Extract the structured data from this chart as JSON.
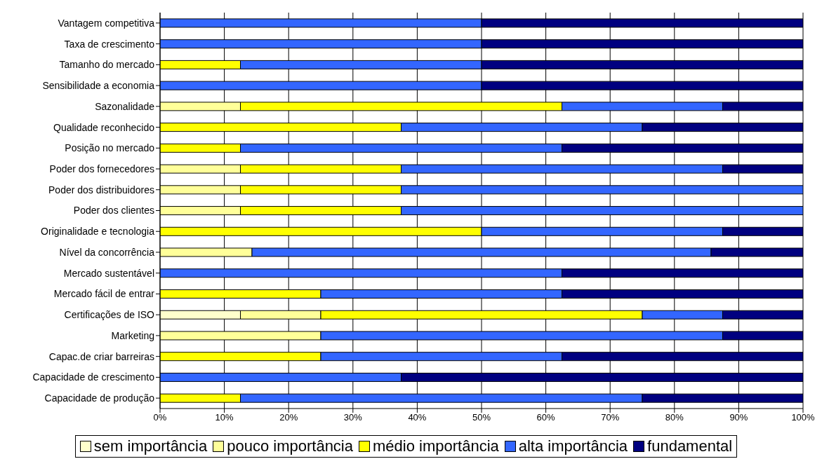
{
  "chart_data": {
    "type": "bar",
    "orientation": "horizontal",
    "stacked": true,
    "categories": [
      "Vantagem competitiva",
      "Taxa de crescimento",
      "Tamanho do mercado",
      "Sensibilidade a economia",
      "Sazonalidade",
      "Qualidade reconhecido",
      "Posição no mercado",
      "Poder dos fornecedores",
      "Poder dos distribuidores",
      "Poder dos clientes",
      "Originalidade e tecnologia",
      "Nível da concorrência",
      "Mercado sustentável",
      "Mercado fácil de entrar",
      "Certificações de ISO",
      "Marketing",
      "Capac.de criar barreiras",
      "Capacidade de crescimento",
      "Capacidade de produção"
    ],
    "series": [
      {
        "name": "sem importância",
        "color": "#ffffcc",
        "values": [
          0,
          0,
          0,
          0,
          0,
          0,
          0,
          0,
          0,
          0,
          0,
          0,
          0,
          0,
          12.5,
          0,
          0,
          0,
          0
        ]
      },
      {
        "name": "pouco importância",
        "color": "#ffff99",
        "values": [
          0,
          0,
          0,
          0,
          12.5,
          0,
          0,
          12.5,
          12.5,
          12.5,
          0,
          14.3,
          0,
          0,
          12.5,
          25,
          0,
          0,
          0
        ]
      },
      {
        "name": "médio importância",
        "color": "#ffff00",
        "values": [
          0,
          0,
          12.5,
          0,
          50,
          37.5,
          12.5,
          25,
          25,
          25,
          50,
          0,
          0,
          25,
          50,
          0,
          25,
          0,
          12.5
        ]
      },
      {
        "name": "alta importância",
        "color": "#3366ff",
        "values": [
          50,
          50,
          37.5,
          50,
          25,
          37.5,
          50,
          50,
          62.5,
          62.5,
          37.5,
          71.4,
          62.5,
          37.5,
          12.5,
          62.5,
          37.5,
          37.5,
          62.5
        ]
      },
      {
        "name": "fundamental",
        "color": "#000080",
        "values": [
          50,
          50,
          50,
          50,
          12.5,
          25,
          37.5,
          12.5,
          0,
          0,
          12.5,
          14.3,
          37.5,
          37.5,
          12.5,
          12.5,
          37.5,
          62.5,
          25
        ]
      }
    ],
    "xlim": [
      0,
      100
    ],
    "xticks": [
      {
        "value": 0,
        "label": "0%"
      },
      {
        "value": 10,
        "label": "10%"
      },
      {
        "value": 20,
        "label": "20%"
      },
      {
        "value": 30,
        "label": "30%"
      },
      {
        "value": 40,
        "label": "40%"
      },
      {
        "value": 50,
        "label": "50%"
      },
      {
        "value": 60,
        "label": "60%"
      },
      {
        "value": 70,
        "label": "70%"
      },
      {
        "value": 80,
        "label": "80%"
      },
      {
        "value": 90,
        "label": "90%"
      },
      {
        "value": 100,
        "label": "100%"
      }
    ],
    "grid": "x",
    "legend": "bottom"
  }
}
